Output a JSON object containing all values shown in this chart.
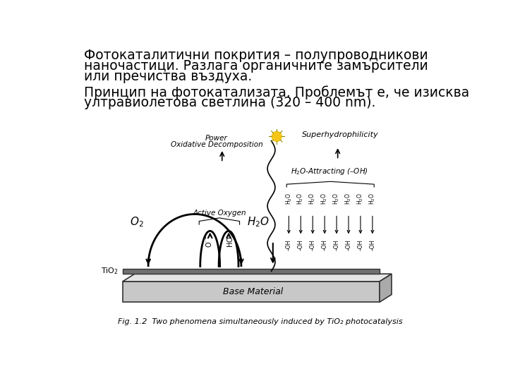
{
  "bg_color": "#ffffff",
  "title_line1": "Фотокаталитични покрития – полупроводникови",
  "title_line2": "наночастици. Разлага органичните замърсители",
  "title_line3": "или пречиства въздуха.",
  "subtitle_line1": "Принцип на фотокатализата. Проблемът е, че изисква",
  "subtitle_line2": "ултравиолетова светлина (320 – 400 nm).",
  "fig_caption": "Fig. 1.2  Two phenomena simultaneously induced by TiO₂ photocatalysis",
  "title_fontsize": 13.5,
  "subtitle_fontsize": 13.5,
  "caption_fontsize": 8,
  "text_color": "#000000"
}
